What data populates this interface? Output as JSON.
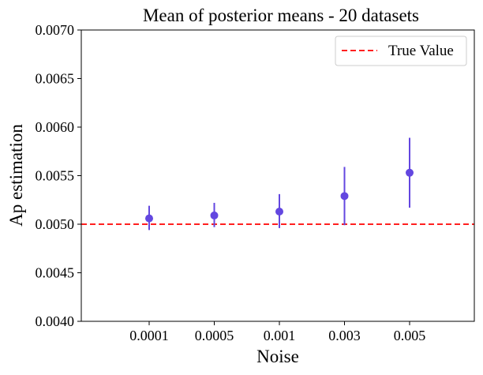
{
  "chart_data": {
    "type": "scatter",
    "title": "Mean of posterior means - 20 datasets",
    "xlabel": "Noise",
    "ylabel": "Ap estimation",
    "categories": [
      "0.0001",
      "0.0005",
      "0.001",
      "0.003",
      "0.005"
    ],
    "ylim": [
      0.004,
      0.007
    ],
    "yticks": [
      "0.0040",
      "0.0045",
      "0.0050",
      "0.0055",
      "0.0060",
      "0.0065",
      "0.0070"
    ],
    "ytick_values": [
      0.004,
      0.0045,
      0.005,
      0.0055,
      0.006,
      0.0065,
      0.007
    ],
    "series": [
      {
        "values": [
          0.00506,
          0.00509,
          0.00513,
          0.00529,
          0.00553
        ],
        "err_low": [
          0.00494,
          0.00497,
          0.00496,
          0.00499,
          0.00517
        ],
        "err_high": [
          0.00519,
          0.00522,
          0.00531,
          0.00559,
          0.00589
        ],
        "color": "#6347e0"
      }
    ],
    "reference_line": {
      "label": "True Value",
      "value": 0.005,
      "color": "#ff0000",
      "style": "dashed"
    },
    "legend_position": "top-right",
    "grid": false
  }
}
